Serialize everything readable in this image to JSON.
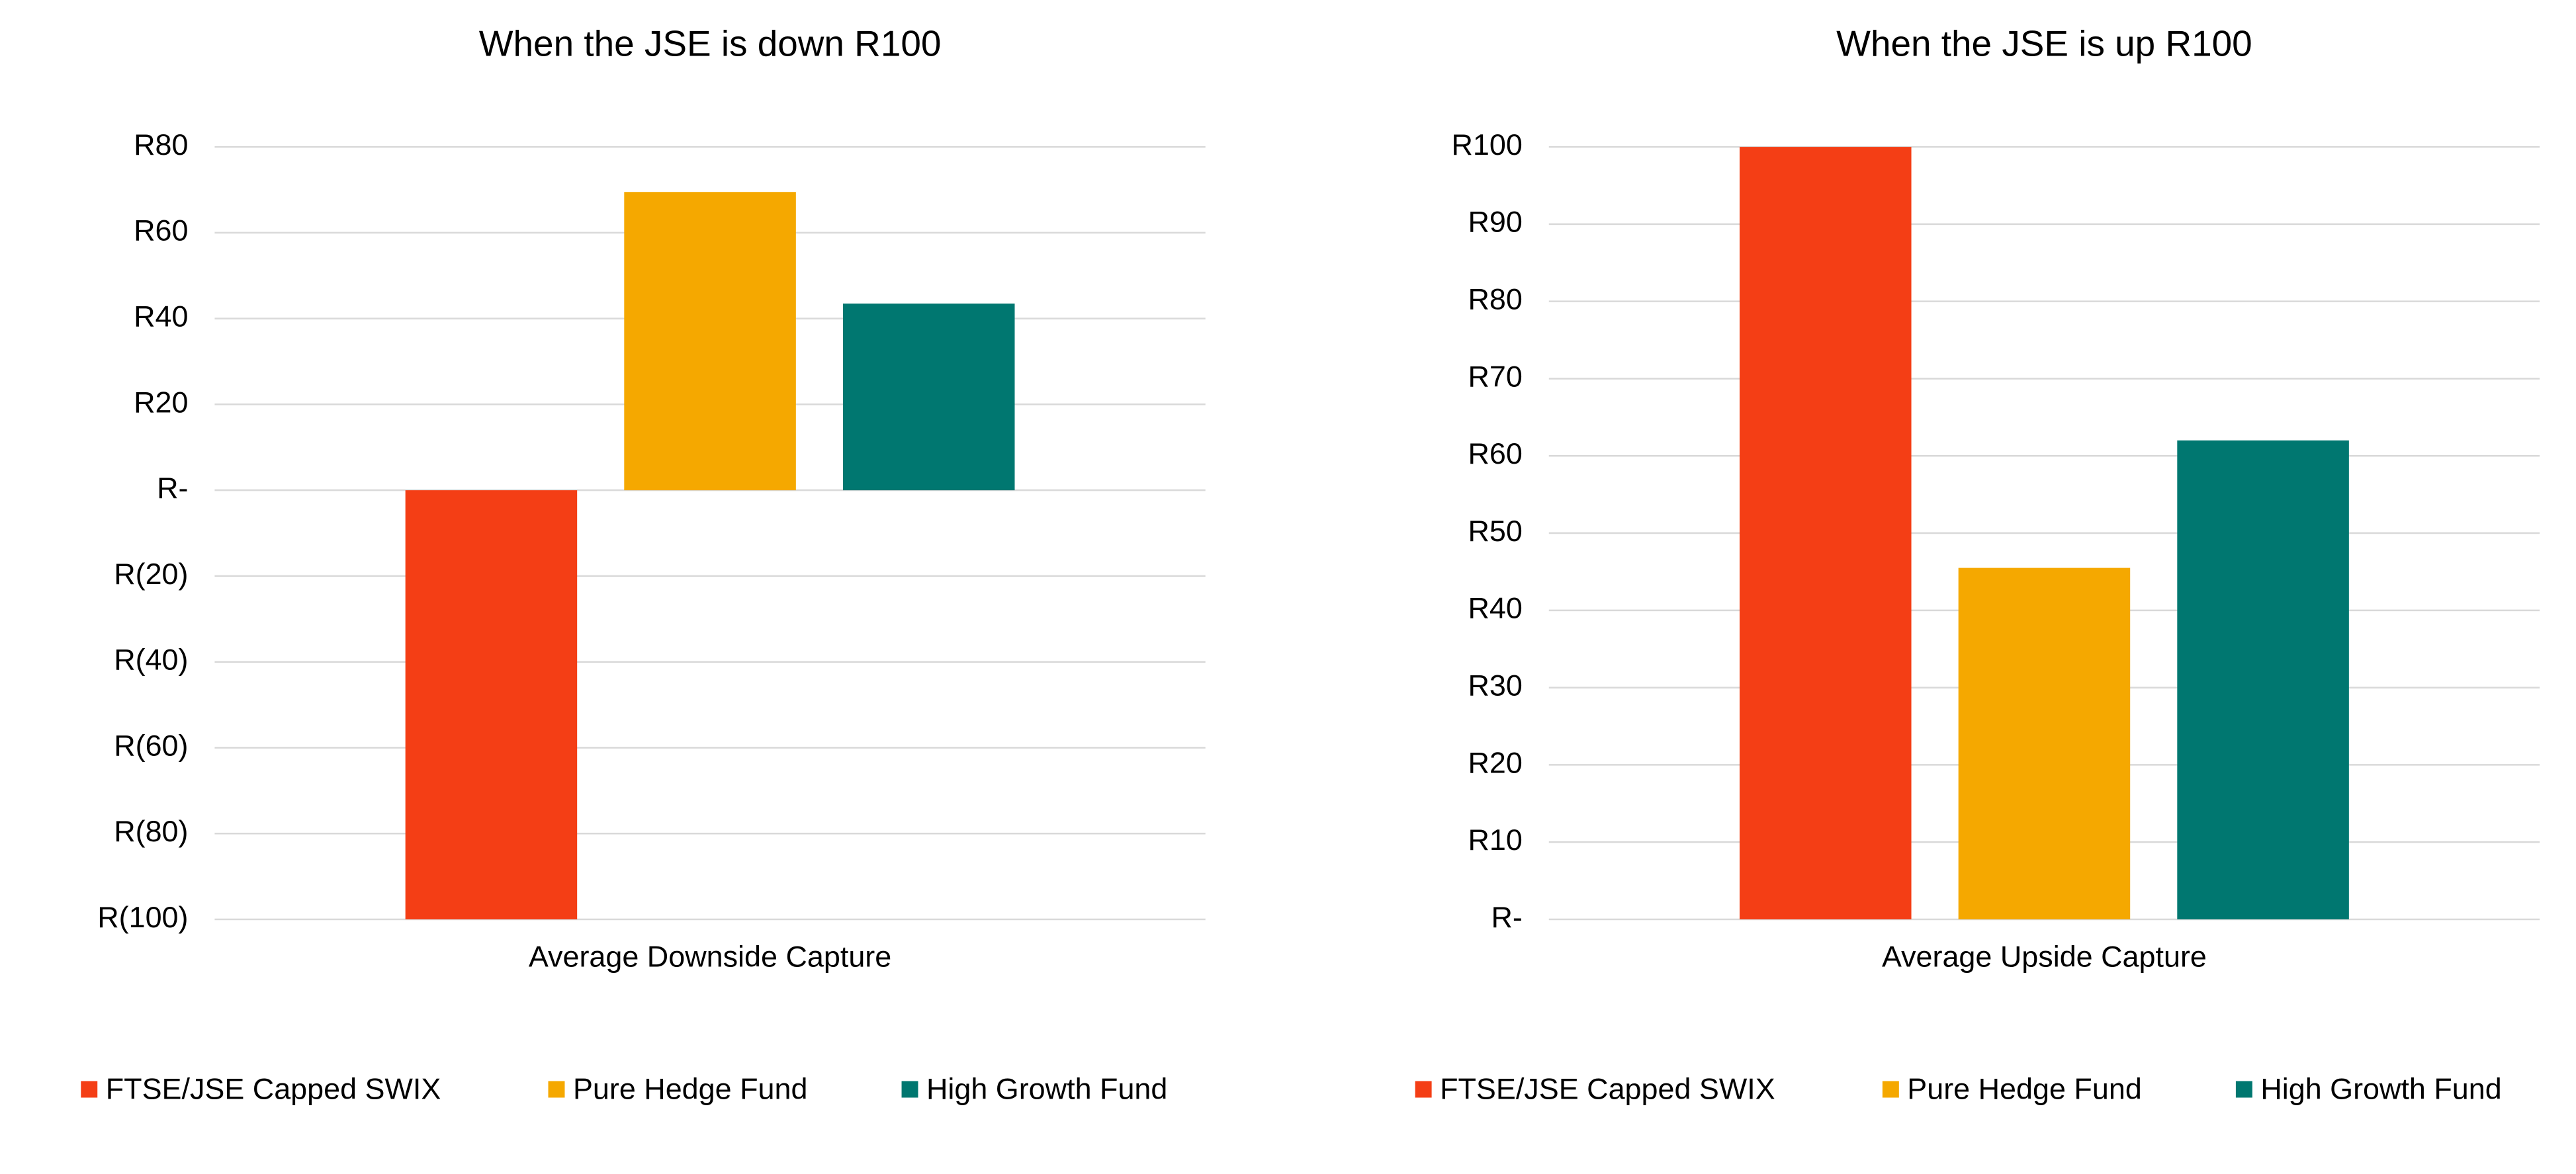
{
  "chart_data": [
    {
      "type": "bar",
      "title": "When the JSE is down R100",
      "categories": [
        "Average Downside Capture"
      ],
      "series": [
        {
          "name": "FTSE/JSE Capped SWIX",
          "color": "#f43e15",
          "values": [
            -100
          ]
        },
        {
          "name": "Pure Hedge Fund",
          "color": "#f5a800",
          "values": [
            69.5
          ]
        },
        {
          "name": "High Growth Fund",
          "color": "#007770",
          "values": [
            43.5
          ]
        }
      ],
      "ylim": [
        -100,
        80
      ],
      "yticks": [
        {
          "value": -100,
          "label": "R(100)"
        },
        {
          "value": -80,
          "label": "R(80)"
        },
        {
          "value": -60,
          "label": "R(60)"
        },
        {
          "value": -40,
          "label": "R(40)"
        },
        {
          "value": -20,
          "label": "R(20)"
        },
        {
          "value": 0,
          "label": "R-"
        },
        {
          "value": 20,
          "label": "R20"
        },
        {
          "value": 40,
          "label": "R40"
        },
        {
          "value": 60,
          "label": "R60"
        },
        {
          "value": 80,
          "label": "R80"
        }
      ],
      "grid": true,
      "legend": "bottom"
    },
    {
      "type": "bar",
      "title": "When the JSE is up R100",
      "categories": [
        "Average Upside Capture"
      ],
      "series": [
        {
          "name": "FTSE/JSE Capped SWIX",
          "color": "#f43e15",
          "values": [
            100
          ]
        },
        {
          "name": "Pure Hedge Fund",
          "color": "#f5a800",
          "values": [
            45.5
          ]
        },
        {
          "name": "High Growth Fund",
          "color": "#007770",
          "values": [
            62
          ]
        }
      ],
      "ylim": [
        0,
        100
      ],
      "yticks": [
        {
          "value": 0,
          "label": "R-"
        },
        {
          "value": 10,
          "label": "R10"
        },
        {
          "value": 20,
          "label": "R20"
        },
        {
          "value": 30,
          "label": "R30"
        },
        {
          "value": 40,
          "label": "R40"
        },
        {
          "value": 50,
          "label": "R50"
        },
        {
          "value": 60,
          "label": "R60"
        },
        {
          "value": 70,
          "label": "R70"
        },
        {
          "value": 80,
          "label": "R80"
        },
        {
          "value": 90,
          "label": "R90"
        },
        {
          "value": 100,
          "label": "R100"
        }
      ],
      "grid": true,
      "legend": "bottom"
    }
  ]
}
